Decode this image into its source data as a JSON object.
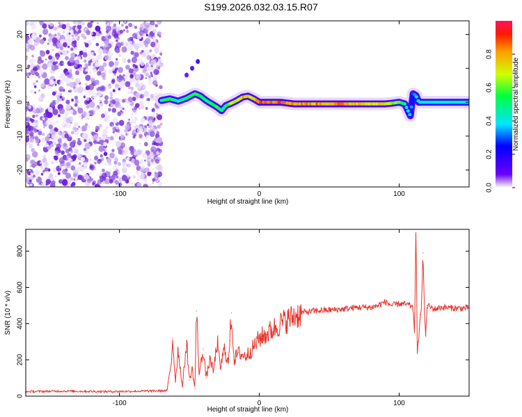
{
  "title": "S199.2026.032.03.15.R07",
  "colors": {
    "noise": "#8a2be2",
    "snr_line": "#e8332a",
    "axis": "#000000",
    "background": "#ffffff"
  },
  "chart_data": [
    {
      "type": "heatmap",
      "name": "spectrogram",
      "xlabel": "Height of straight line (km)",
      "ylabel": "Frequency (Hz)",
      "xlim": [
        -167,
        150
      ],
      "ylim": [
        -25,
        24
      ],
      "xticks": [
        -100,
        0,
        100
      ],
      "yticks": [
        -20,
        -10,
        0,
        10,
        20
      ],
      "noise_region_x": [
        -167,
        -70
      ],
      "trace": {
        "x": [
          -70,
          -64,
          -58,
          -52,
          -46,
          -42,
          -38,
          -34,
          -30,
          -27,
          -24,
          -20,
          -16,
          -12,
          -8,
          -4,
          0,
          5,
          15,
          25,
          40,
          60,
          80,
          90,
          95,
          100,
          104,
          108,
          110,
          112,
          114,
          120,
          130,
          140,
          150
        ],
        "freq": [
          0.5,
          1.0,
          0.3,
          1.2,
          2.5,
          1.8,
          0.5,
          -0.5,
          -1.5,
          -2.5,
          -1.0,
          -0.3,
          0.5,
          1.5,
          1.8,
          1.0,
          0.0,
          0.0,
          0.0,
          -0.5,
          -0.5,
          -0.5,
          -0.5,
          -0.5,
          -0.3,
          0.0,
          -0.5,
          -4.0,
          2.5,
          2.0,
          0.0,
          0.0,
          0.0,
          0.0,
          0.0
        ],
        "amp": [
          0.5,
          0.55,
          0.5,
          0.55,
          0.6,
          0.55,
          0.5,
          0.55,
          0.6,
          0.5,
          0.55,
          0.7,
          0.75,
          0.8,
          0.8,
          0.85,
          0.95,
          0.95,
          0.95,
          0.85,
          0.85,
          0.85,
          0.8,
          0.75,
          0.7,
          0.6,
          0.5,
          0.4,
          0.35,
          0.4,
          0.45,
          0.45,
          0.45,
          0.45,
          0.45
        ]
      },
      "colorbar": {
        "label": "Normalized spectral amplitude",
        "range": [
          0.0,
          1.0
        ],
        "ticks": [
          0.0,
          0.2,
          0.4,
          0.6,
          0.8
        ]
      }
    },
    {
      "type": "line",
      "name": "snr",
      "xlabel": "Height of straight line (km)",
      "ylabel": "SNR (10 * v/v)",
      "xlim": [
        -167,
        150
      ],
      "ylim": [
        0,
        920
      ],
      "xticks": [
        -100,
        0,
        100
      ],
      "yticks": [
        0,
        200,
        400,
        600,
        800
      ],
      "series": [
        {
          "name": "SNR",
          "x": [
            -167,
            -140,
            -110,
            -80,
            -66,
            -63,
            -62,
            -60,
            -58,
            -55,
            -52,
            -50,
            -48,
            -46,
            -45,
            -43,
            -40,
            -38,
            -35,
            -33,
            -30,
            -28,
            -25,
            -22,
            -20,
            -18,
            -15,
            -10,
            -5,
            0,
            5,
            10,
            15,
            20,
            25,
            30,
            40,
            50,
            60,
            70,
            80,
            85,
            90,
            95,
            100,
            105,
            108,
            110,
            111,
            112,
            113,
            114,
            115,
            116,
            117,
            118,
            119,
            120,
            125,
            130,
            140,
            150
          ],
          "y": [
            25,
            28,
            25,
            28,
            30,
            180,
            320,
            80,
            260,
            50,
            300,
            90,
            150,
            40,
            470,
            120,
            260,
            100,
            210,
            130,
            300,
            150,
            260,
            180,
            460,
            200,
            240,
            220,
            260,
            320,
            340,
            370,
            400,
            420,
            440,
            460,
            470,
            475,
            480,
            490,
            490,
            500,
            520,
            500,
            510,
            505,
            500,
            480,
            350,
            920,
            250,
            300,
            450,
            510,
            790,
            480,
            330,
            500,
            480,
            490,
            485,
            485
          ]
        }
      ]
    }
  ]
}
